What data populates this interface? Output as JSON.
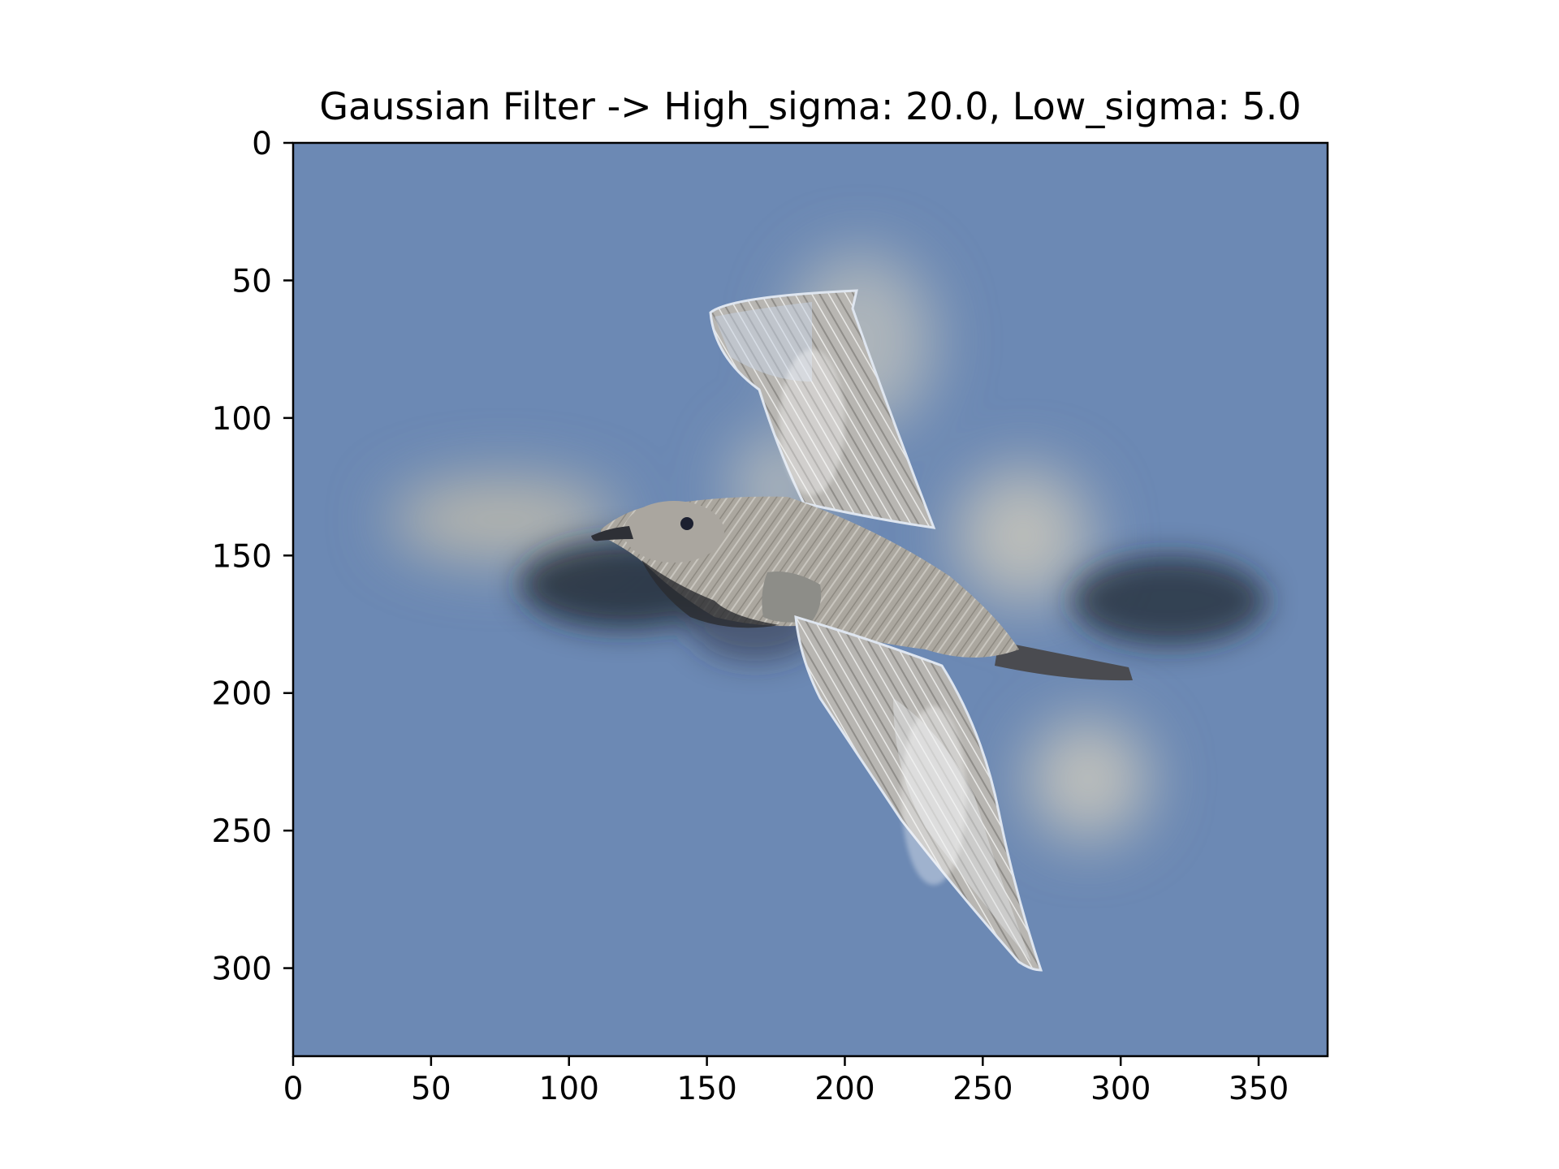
{
  "title": "Gaussian Filter -> High_sigma: 20.0, Low_sigma: 5.0",
  "image": {
    "subject": "gull-in-flight-icon",
    "background_color": "#6c89b4",
    "bird_color": "#a9a59d",
    "shadow_color": "#2a2e36",
    "halo_color": "#d8d2c0"
  },
  "axes": {
    "x_ticks": [
      "0",
      "50",
      "100",
      "150",
      "200",
      "250",
      "300",
      "350"
    ],
    "y_ticks": [
      "0",
      "50",
      "100",
      "150",
      "200",
      "250",
      "300"
    ],
    "xlim": [
      0,
      375
    ],
    "ylim": [
      332,
      0
    ]
  }
}
